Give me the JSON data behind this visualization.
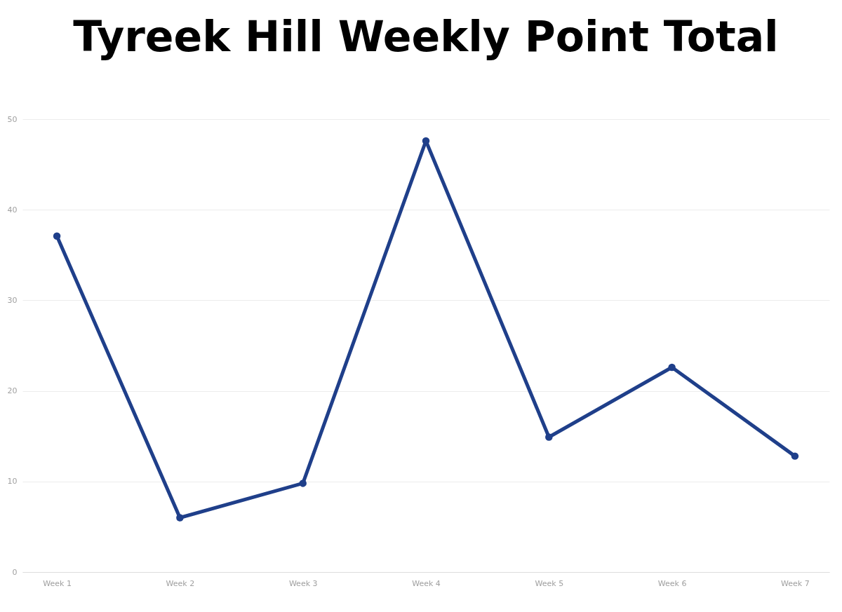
{
  "chart_data": {
    "type": "line",
    "title": "Tyreek Hill Weekly Point Total",
    "categories": [
      "Week 1",
      "Week 2",
      "Week 3",
      "Week 4",
      "Week 5",
      "Week 6",
      "Week 7"
    ],
    "series": [
      {
        "color": "#1f3f8a",
        "values": [
          37.1,
          6.0,
          9.8,
          47.6,
          14.9,
          22.6,
          12.8
        ]
      }
    ],
    "ylim": [
      0,
      50
    ],
    "yticks": [
      0,
      10,
      20,
      30,
      40,
      50
    ],
    "grid": "y",
    "marker": "circle",
    "line_style": "solid",
    "legend": false
  }
}
